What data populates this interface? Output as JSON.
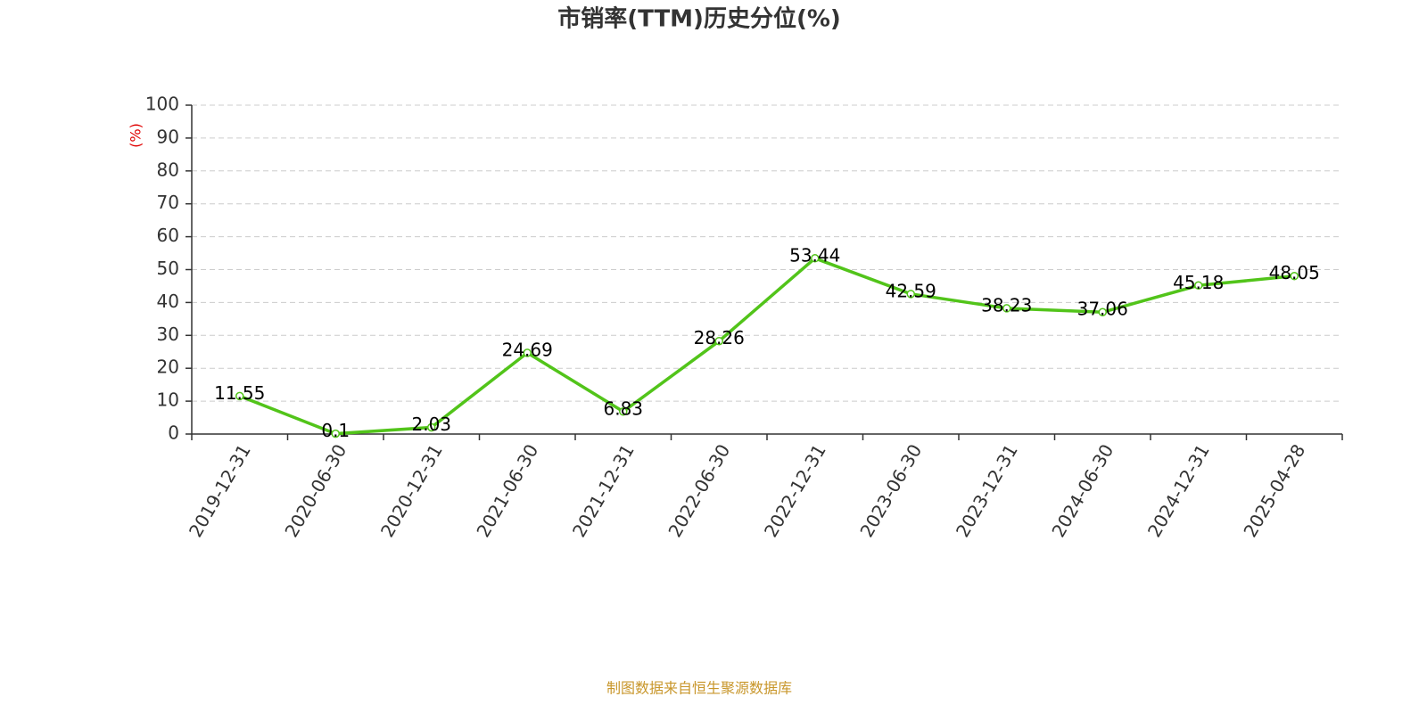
{
  "chart_data": {
    "type": "line",
    "title": "市销率(TTM)历史分位(%)",
    "y_label": "(%)",
    "source": "制图数据来自恒生聚源数据库",
    "categories": [
      "2019-12-31",
      "2020-06-30",
      "2020-12-31",
      "2021-06-30",
      "2021-12-31",
      "2022-06-30",
      "2022-12-31",
      "2023-06-30",
      "2023-12-31",
      "2024-06-30",
      "2024-12-31",
      "2025-04-28"
    ],
    "values": [
      11.55,
      0.1,
      2.03,
      24.69,
      6.83,
      28.26,
      53.44,
      42.59,
      38.23,
      37.06,
      45.18,
      48.05
    ],
    "color": "#52c41a",
    "ylim": [
      0,
      100
    ],
    "yticks": [
      0,
      10,
      20,
      30,
      40,
      50,
      60,
      70,
      80,
      90,
      100
    ],
    "grid": true
  }
}
